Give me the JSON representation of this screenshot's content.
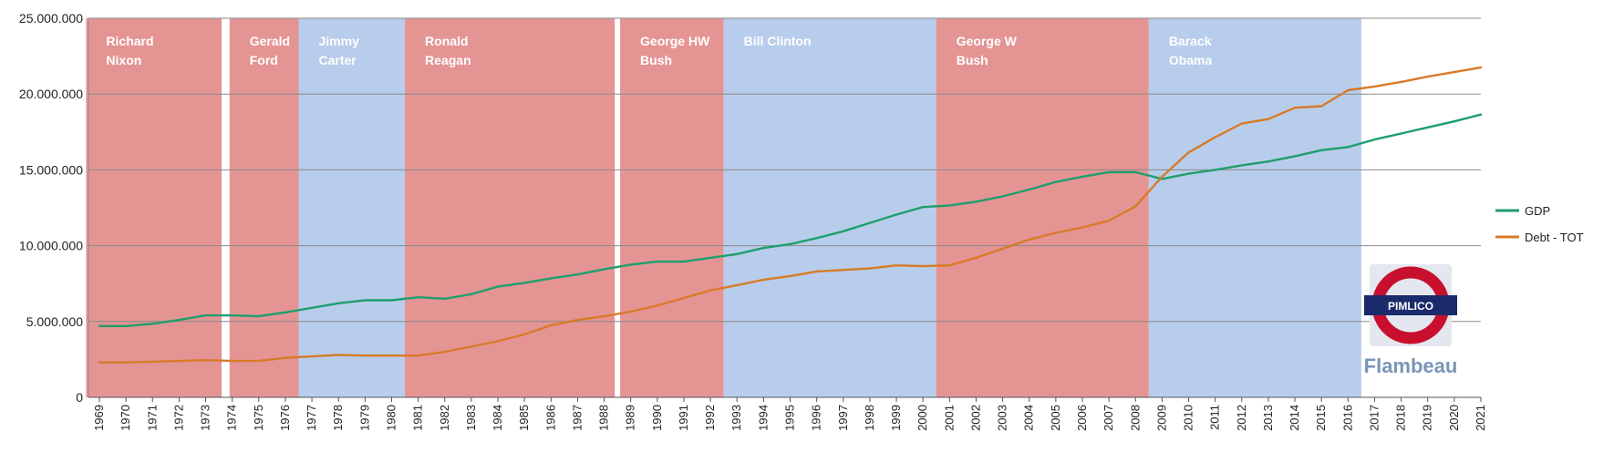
{
  "chart_data": {
    "type": "line",
    "title": "",
    "xlabel": "",
    "ylabel": "",
    "ylim": [
      0,
      25000000
    ],
    "yticks": [
      0,
      5000000,
      10000000,
      15000000,
      20000000,
      25000000
    ],
    "ytick_labels": [
      "0",
      "5.000.000",
      "10.000.000",
      "15.000.000",
      "20.000.000",
      "25.000.000"
    ],
    "grid": true,
    "legend_position": "right",
    "x": [
      1969,
      1970,
      1971,
      1972,
      1973,
      1974,
      1975,
      1976,
      1977,
      1978,
      1979,
      1980,
      1981,
      1982,
      1983,
      1984,
      1985,
      1986,
      1987,
      1988,
      1989,
      1990,
      1991,
      1992,
      1993,
      1994,
      1995,
      1996,
      1997,
      1998,
      1999,
      2000,
      2001,
      2002,
      2003,
      2004,
      2005,
      2006,
      2007,
      2008,
      2009,
      2010,
      2011,
      2012,
      2013,
      2014,
      2015,
      2016,
      2017,
      2018,
      2019,
      2020,
      2021
    ],
    "x_labels": [
      "1969",
      "1970",
      "1971",
      "1972",
      "1973",
      "1974",
      "1975",
      "1976",
      "1977",
      "1978",
      "1979",
      "1980",
      "1981",
      "1982",
      "1983",
      "1984",
      "1985",
      "1986",
      "1987",
      "1988",
      "1989",
      "1990",
      "1991",
      "1992",
      "1993",
      "1994",
      "1995",
      "1996",
      "1997",
      "1998",
      "1999",
      "2000",
      "2001",
      "2002",
      "2003",
      "2004",
      "2005",
      "2006",
      "2007",
      "2008",
      "2009",
      "2010",
      "2011",
      "2012",
      "2013",
      "2014",
      "2015",
      "2016",
      "2017",
      "2018",
      "2019",
      "2020",
      "2021"
    ],
    "series": [
      {
        "name": "GDP",
        "color": "#1f9e6e",
        "values": [
          4700000,
          4700000,
          4850000,
          5100000,
          5400000,
          5400000,
          5350000,
          5600000,
          5900000,
          6200000,
          6400000,
          6400000,
          6600000,
          6500000,
          6800000,
          7300000,
          7550000,
          7850000,
          8100000,
          8450000,
          8750000,
          8950000,
          8950000,
          9200000,
          9450000,
          9850000,
          10100000,
          10500000,
          10950000,
          11500000,
          12050000,
          12550000,
          12650000,
          12900000,
          13250000,
          13700000,
          14200000,
          14550000,
          14850000,
          14850000,
          14400000,
          14750000,
          15000000,
          15300000,
          15550000,
          15900000,
          16300000,
          16500000,
          17000000,
          17400000,
          17800000,
          18200000,
          18650000
        ]
      },
      {
        "name": "Debt - TOT",
        "color": "#d77b28",
        "values": [
          2300000,
          2300000,
          2350000,
          2400000,
          2450000,
          2400000,
          2400000,
          2600000,
          2700000,
          2800000,
          2750000,
          2750000,
          2750000,
          3000000,
          3350000,
          3700000,
          4150000,
          4750000,
          5100000,
          5350000,
          5650000,
          6050000,
          6550000,
          7050000,
          7400000,
          7750000,
          8000000,
          8300000,
          8400000,
          8500000,
          8700000,
          8650000,
          8700000,
          9200000,
          9800000,
          10400000,
          10850000,
          11200000,
          11650000,
          12600000,
          14550000,
          16150000,
          17150000,
          18050000,
          18350000,
          19100000,
          19200000,
          20250000,
          20500000,
          20800000,
          21150000,
          21450000,
          21750000
        ]
      }
    ],
    "presidencies": [
      {
        "name": "Richard Nixon",
        "lines": [
          "Richard",
          "Nixon"
        ],
        "start": 1969,
        "end": 1973.6,
        "party": "R"
      },
      {
        "name": "Gerald Ford",
        "lines": [
          "Gerald",
          "Ford"
        ],
        "start": 1973.9,
        "end": 1976.5,
        "party": "R"
      },
      {
        "name": "Jimmy Carter",
        "lines": [
          "Jimmy",
          "Carter"
        ],
        "start": 1976.5,
        "end": 1980.5,
        "party": "D"
      },
      {
        "name": "Ronald Reagan",
        "lines": [
          "Ronald",
          "Reagan"
        ],
        "start": 1980.5,
        "end": 1988.4,
        "party": "R"
      },
      {
        "name": "George HW Bush",
        "lines": [
          "George HW",
          "Bush"
        ],
        "start": 1988.6,
        "end": 1992.5,
        "party": "R"
      },
      {
        "name": "Bill Clinton",
        "lines": [
          "Bill Clinton"
        ],
        "start": 1992.5,
        "end": 2000.5,
        "party": "D"
      },
      {
        "name": "George W Bush",
        "lines": [
          "George W",
          "Bush"
        ],
        "start": 2000.5,
        "end": 2008.5,
        "party": "R"
      },
      {
        "name": "Barack Obama",
        "lines": [
          "Barack",
          "Obama"
        ],
        "start": 2008.5,
        "end": 2016.5,
        "party": "D"
      }
    ],
    "party_colors": {
      "R": "#e59494",
      "D": "#b8cdeb"
    }
  },
  "logo": {
    "badge_text": "PIMLICO",
    "brand_text": "Flambeau",
    "ring_color": "#c8102e",
    "bar_color": "#1b2a6b",
    "brand_color": "#7a95b5"
  }
}
